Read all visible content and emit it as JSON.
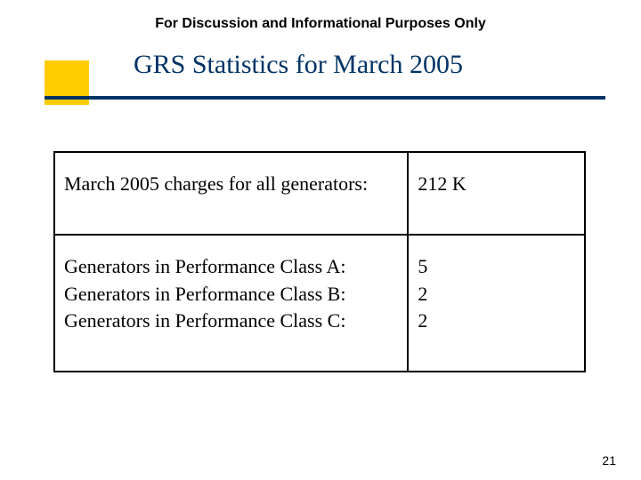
{
  "header": "For Discussion and Informational Purposes Only",
  "title": "GRS Statistics for March 2005",
  "colors": {
    "accent": "#ffcc00",
    "title_text": "#003366",
    "underline": "#003366",
    "border": "#000000",
    "background": "#ffffff"
  },
  "table": {
    "rows": [
      {
        "label_lines": [
          "March 2005 charges for all generators:"
        ],
        "value_lines": [
          "212 K"
        ]
      },
      {
        "label_lines": [
          "Generators in Performance Class A:",
          "Generators in Performance Class B:",
          "Generators in Performance Class C:"
        ],
        "value_lines": [
          "5",
          "2",
          "2"
        ]
      }
    ]
  },
  "page_number": "21"
}
